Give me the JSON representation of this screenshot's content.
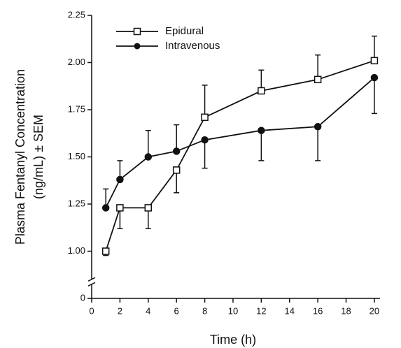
{
  "chart_data": {
    "type": "line",
    "xlabel": "Time (h)",
    "ylabel": [
      "Plasma Fentanyl Concentration",
      "(ng/mL) ± SEM"
    ],
    "x": [
      1,
      2,
      4,
      6,
      8,
      12,
      16,
      20
    ],
    "xlim": [
      0,
      20.4
    ],
    "xticks": [
      0,
      2,
      4,
      6,
      8,
      10,
      12,
      14,
      16,
      18,
      20
    ],
    "ylim": [
      0,
      2.25
    ],
    "y_break": [
      0,
      1
    ],
    "yticks": [
      0,
      {
        "value": 1,
        "label": "1.00"
      },
      1.25,
      {
        "value": 1.5,
        "label": "1.50"
      },
      1.75,
      {
        "value": 2,
        "label": "2.00"
      },
      2.25
    ],
    "legend": "upper left",
    "series": [
      {
        "name": "Epidural",
        "color": "#111111",
        "marker": "open-square",
        "values": [
          1.0,
          1.23,
          1.23,
          1.43,
          1.71,
          1.85,
          1.91,
          2.01
        ],
        "errors": [
          0.09,
          0.11,
          0.11,
          0.12,
          0.17,
          0.11,
          0.13,
          0.13
        ],
        "error_sides": [
          "down",
          "down",
          "down",
          "down",
          "up",
          "up",
          "up",
          "up"
        ]
      },
      {
        "name": "Intravenous",
        "color": "#111111",
        "marker": "filled-circle",
        "values": [
          1.23,
          1.38,
          1.5,
          1.53,
          1.59,
          1.64,
          1.66,
          1.92
        ],
        "errors": [
          0.1,
          0.1,
          0.14,
          0.14,
          0.15,
          0.16,
          0.18,
          0.19
        ],
        "error_sides": [
          "up",
          "up",
          "up",
          "up",
          "down",
          "down",
          "down",
          "down"
        ]
      }
    ]
  }
}
